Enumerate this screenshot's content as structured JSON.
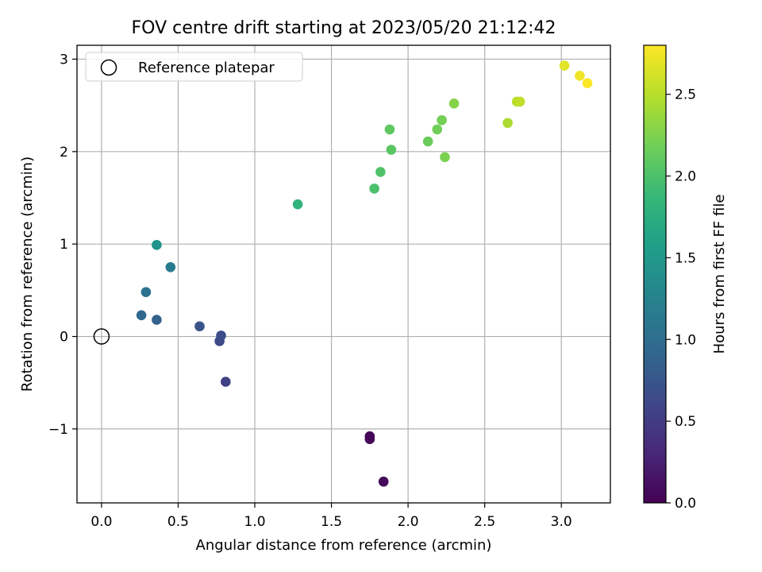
{
  "chart_data": {
    "type": "scatter",
    "title": "FOV centre drift starting at 2023/05/20 21:12:42",
    "xlabel": "Angular distance from reference (arcmin)",
    "ylabel": "Rotation from reference (arcmin)",
    "xlim": [
      -0.16,
      3.32
    ],
    "ylim": [
      -1.8,
      3.15
    ],
    "x_ticks": [
      0.0,
      0.5,
      1.0,
      1.5,
      2.0,
      2.5,
      3.0
    ],
    "x_tick_labels": [
      "0.0",
      "0.5",
      "1.0",
      "1.5",
      "2.0",
      "2.5",
      "3.0"
    ],
    "y_ticks": [
      -1,
      0,
      1,
      2,
      3
    ],
    "y_tick_labels": [
      "−1",
      "0",
      "1",
      "2",
      "3"
    ],
    "grid": true,
    "legend": {
      "position": "top-left",
      "entries": [
        "Reference platepar"
      ]
    },
    "reference_point": {
      "x": 0.0,
      "y": 0.0,
      "label": "Reference platepar"
    },
    "colorbar": {
      "label": "Hours from first FF file",
      "range": [
        0,
        2.8
      ],
      "ticks": [
        0.0,
        0.5,
        1.0,
        1.5,
        2.0,
        2.5
      ],
      "tick_labels": [
        "0.0",
        "0.5",
        "1.0",
        "1.5",
        "2.0",
        "2.5"
      ],
      "colormap": "viridis",
      "colors": [
        "#440154",
        "#482878",
        "#3e4989",
        "#31688e",
        "#26828e",
        "#1f9e89",
        "#35b779",
        "#6ece58",
        "#b5de2b",
        "#fde725"
      ]
    },
    "points": [
      {
        "x": 1.75,
        "y": -1.08,
        "hours": 0.02
      },
      {
        "x": 1.75,
        "y": -1.11,
        "hours": 0.04
      },
      {
        "x": 1.84,
        "y": -1.57,
        "hours": 0.07
      },
      {
        "x": 0.81,
        "y": -0.49,
        "hours": 0.55
      },
      {
        "x": 0.77,
        "y": -0.05,
        "hours": 0.62
      },
      {
        "x": 0.78,
        "y": 0.01,
        "hours": 0.66
      },
      {
        "x": 0.64,
        "y": 0.11,
        "hours": 0.72
      },
      {
        "x": 0.36,
        "y": 0.18,
        "hours": 0.88
      },
      {
        "x": 0.26,
        "y": 0.23,
        "hours": 0.95
      },
      {
        "x": 0.29,
        "y": 0.48,
        "hours": 1.05
      },
      {
        "x": 0.45,
        "y": 0.75,
        "hours": 1.15
      },
      {
        "x": 0.36,
        "y": 0.99,
        "hours": 1.45
      },
      {
        "x": 1.28,
        "y": 1.43,
        "hours": 1.82
      },
      {
        "x": 1.78,
        "y": 1.6,
        "hours": 1.98
      },
      {
        "x": 1.82,
        "y": 1.78,
        "hours": 2.02
      },
      {
        "x": 1.89,
        "y": 2.02,
        "hours": 2.07
      },
      {
        "x": 1.88,
        "y": 2.24,
        "hours": 2.1
      },
      {
        "x": 2.13,
        "y": 2.11,
        "hours": 2.15
      },
      {
        "x": 2.19,
        "y": 2.24,
        "hours": 2.18
      },
      {
        "x": 2.22,
        "y": 2.34,
        "hours": 2.2
      },
      {
        "x": 2.24,
        "y": 1.94,
        "hours": 2.23
      },
      {
        "x": 2.3,
        "y": 2.52,
        "hours": 2.28
      },
      {
        "x": 2.65,
        "y": 2.31,
        "hours": 2.45
      },
      {
        "x": 2.71,
        "y": 2.54,
        "hours": 2.5
      },
      {
        "x": 2.73,
        "y": 2.54,
        "hours": 2.53
      },
      {
        "x": 3.02,
        "y": 2.93,
        "hours": 2.68
      },
      {
        "x": 3.12,
        "y": 2.82,
        "hours": 2.74
      },
      {
        "x": 3.17,
        "y": 2.74,
        "hours": 2.79
      }
    ]
  }
}
